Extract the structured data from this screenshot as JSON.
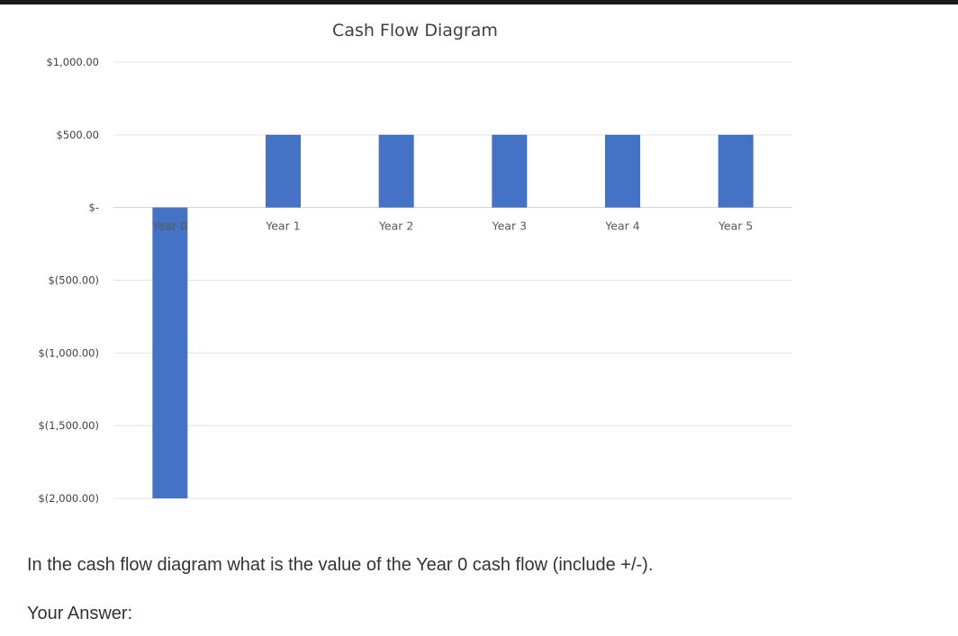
{
  "chart_data": {
    "type": "bar",
    "title": "Cash Flow Diagram",
    "categories": [
      "Year 0",
      "Year 1",
      "Year 2",
      "Year 3",
      "Year 4",
      "Year 5"
    ],
    "values": [
      -2000,
      500,
      500,
      500,
      500,
      500
    ],
    "ylim": [
      -2000,
      1000
    ],
    "yticks": [
      1000,
      500,
      0,
      -500,
      -1000,
      -1500,
      -2000
    ],
    "ytick_labels": [
      "$1,000.00",
      "$500.00",
      "$-",
      "$(500.00)",
      "$(1,000.00)",
      "$(1,500.00)",
      "$(2,000.00)"
    ],
    "grid": true,
    "bar_color": "#4472C4",
    "xlabel": "",
    "ylabel": ""
  },
  "question": {
    "text": "In the cash flow diagram what is the value of the Year 0 cash flow (include +/-).",
    "answer_label": "Your Answer:"
  }
}
